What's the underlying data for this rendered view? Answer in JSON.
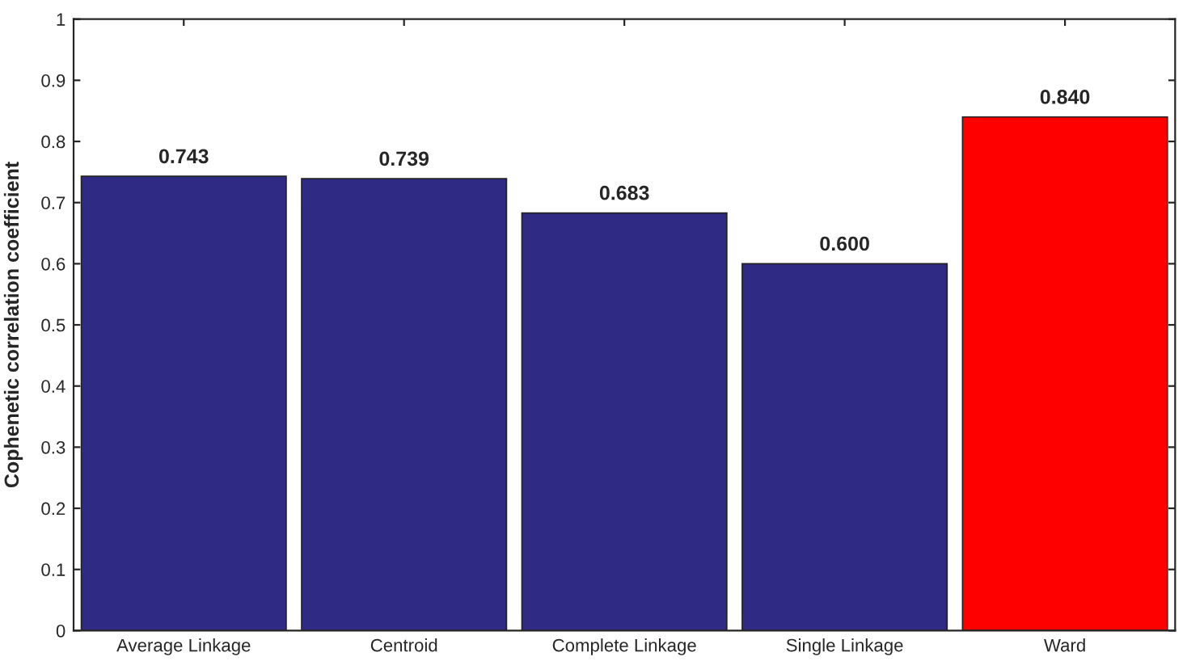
{
  "chart_data": {
    "type": "bar",
    "ylabel": "Cophenetic correlation coefficient",
    "categories": [
      "Average Linkage",
      "Centroid",
      "Complete Linkage",
      "Single Linkage",
      "Ward"
    ],
    "values": [
      0.743,
      0.739,
      0.683,
      0.6,
      0.84
    ],
    "colors": [
      "#2f2a83",
      "#2f2a83",
      "#2f2a83",
      "#2f2a83",
      "#ff0000"
    ],
    "value_labels": [
      "0.743",
      "0.739",
      "0.683",
      "0.600",
      "0.840"
    ],
    "ylim": [
      0,
      1
    ],
    "yticks": [
      0,
      0.1,
      0.2,
      0.3,
      0.4,
      0.5,
      0.6,
      0.7,
      0.8,
      0.9,
      1
    ],
    "grid": false,
    "legend": false
  }
}
